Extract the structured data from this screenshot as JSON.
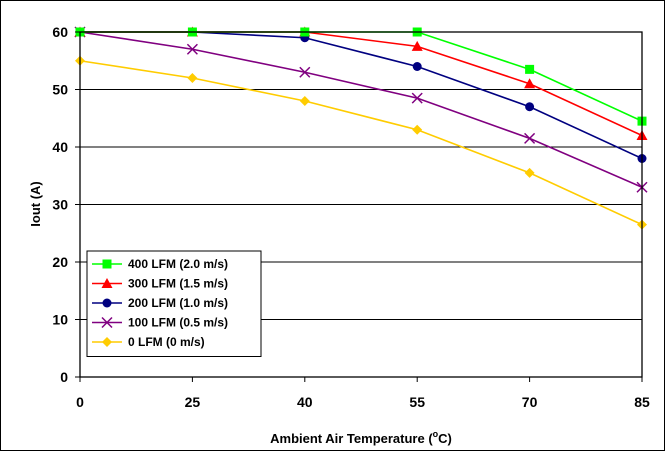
{
  "chart_data": {
    "type": "line",
    "xlabel": "Ambient Air Temperature (",
    "xlabel_sup": "o",
    "xlabel_unit": "C)",
    "ylabel": "Iout (A)",
    "x": [
      0,
      25,
      40,
      55,
      70,
      85
    ],
    "x_ticks": [
      "0",
      "25",
      "40",
      "55",
      "70",
      "85"
    ],
    "xlim": [
      0,
      85
    ],
    "ylim": [
      0,
      60
    ],
    "y_ticks": [
      "0",
      "10",
      "20",
      "30",
      "40",
      "50",
      "60"
    ],
    "y_tick_values": [
      0,
      10,
      20,
      30,
      40,
      50,
      60
    ],
    "grid": "horizontal",
    "legend_position": "lower-left",
    "series": [
      {
        "name": "400 LFM (2.0 m/s)",
        "color": "#00ff00",
        "marker": "square",
        "values": [
          60,
          60,
          60,
          60,
          53.5,
          44.5
        ]
      },
      {
        "name": "300 LFM (1.5 m/s)",
        "color": "#ff0000",
        "marker": "triangle",
        "values": [
          60,
          60,
          60,
          57.5,
          51,
          42
        ]
      },
      {
        "name": "200 LFM (1.0 m/s)",
        "color": "#000080",
        "marker": "circle",
        "values": [
          60,
          60,
          59,
          54,
          47,
          38
        ]
      },
      {
        "name": "100 LFM (0.5 m/s)",
        "color": "#800080",
        "marker": "x",
        "values": [
          60,
          57,
          53,
          48.5,
          41.5,
          33
        ]
      },
      {
        "name": "0 LFM (0 m/s)",
        "color": "#ffcc00",
        "marker": "diamond",
        "values": [
          55,
          52,
          48,
          43,
          35.5,
          26.5
        ]
      }
    ]
  }
}
